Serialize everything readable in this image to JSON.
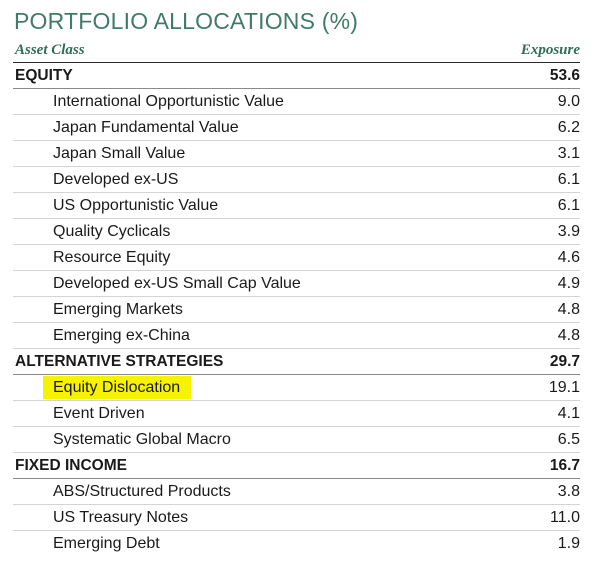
{
  "title": "PORTFOLIO ALLOCATIONS (%)",
  "columns": {
    "asset_class": "Asset Class",
    "exposure": "Exposure"
  },
  "groups": [
    {
      "name": "EQUITY",
      "total": "53.6",
      "items": [
        {
          "label": "International Opportunistic Value",
          "value": "9.0"
        },
        {
          "label": "Japan Fundamental Value",
          "value": "6.2"
        },
        {
          "label": "Japan Small Value",
          "value": "3.1"
        },
        {
          "label": "Developed ex-US",
          "value": "6.1"
        },
        {
          "label": "US Opportunistic Value",
          "value": "6.1"
        },
        {
          "label": "Quality Cyclicals",
          "value": "3.9"
        },
        {
          "label": "Resource Equity",
          "value": "4.6"
        },
        {
          "label": "Developed ex-US Small Cap Value",
          "value": "4.9"
        },
        {
          "label": "Emerging Markets",
          "value": "4.8"
        },
        {
          "label": "Emerging ex-China",
          "value": "4.8"
        }
      ]
    },
    {
      "name": "ALTERNATIVE STRATEGIES",
      "total": "29.7",
      "items": [
        {
          "label": "Equity Dislocation",
          "value": "19.1",
          "highlighted": true
        },
        {
          "label": "Event Driven",
          "value": "4.1"
        },
        {
          "label": "Systematic Global Macro",
          "value": "6.5"
        }
      ]
    },
    {
      "name": "FIXED INCOME",
      "total": "16.7",
      "items": [
        {
          "label": "ABS/Structured Products",
          "value": "3.8"
        },
        {
          "label": "US Treasury Notes",
          "value": "11.0"
        },
        {
          "label": "Emerging Debt",
          "value": "1.9"
        }
      ]
    }
  ],
  "colors": {
    "title": "#3f7b67",
    "header": "#2f6c59",
    "highlight": "#f6f200"
  }
}
